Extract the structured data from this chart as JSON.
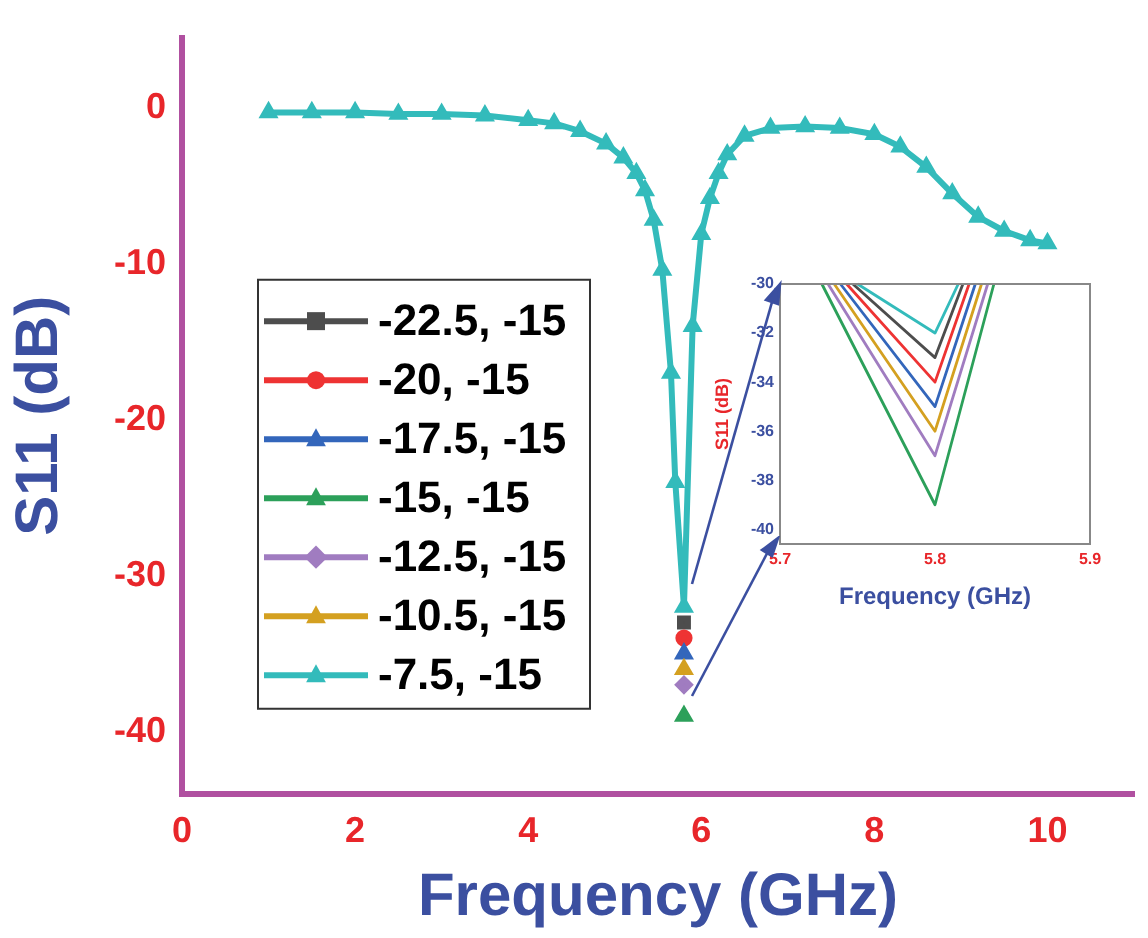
{
  "chart_data": [
    {
      "type": "line",
      "xlabel": "Frequency (GHz)",
      "ylabel": "S11 (dB)",
      "xlim": [
        0,
        11
      ],
      "ylim": [
        -44,
        4.5
      ],
      "xticks": [
        0,
        2,
        4,
        6,
        8,
        10
      ],
      "yticks": [
        -40,
        -30,
        -20,
        -10,
        0
      ],
      "legend": "left",
      "x": [
        1,
        1.5,
        2,
        2.5,
        3,
        3.5,
        4,
        4.3,
        4.6,
        4.9,
        5.1,
        5.25,
        5.35,
        5.45,
        5.55,
        5.65,
        5.7,
        5.8,
        5.9,
        6,
        6.1,
        6.2,
        6.3,
        6.5,
        6.8,
        7.2,
        7.6,
        8,
        8.3,
        8.6,
        8.9,
        9.2,
        9.5,
        9.8,
        10
      ],
      "series": [
        {
          "name": "-22.5, -15",
          "color": "#4d4d4d",
          "marker": "square",
          "values": [
            null,
            null,
            null,
            null,
            null,
            null,
            null,
            null,
            null,
            null,
            null,
            null,
            null,
            null,
            null,
            null,
            null,
            -33,
            null,
            null,
            null,
            null,
            null,
            null,
            null,
            null,
            null,
            null,
            null,
            null,
            null,
            null,
            null,
            null,
            null
          ]
        },
        {
          "name": "-20, -15",
          "color": "#ee3333",
          "marker": "circle",
          "values": [
            null,
            null,
            null,
            null,
            null,
            null,
            null,
            null,
            null,
            null,
            null,
            null,
            null,
            null,
            null,
            null,
            null,
            -34,
            null,
            null,
            null,
            null,
            null,
            null,
            null,
            null,
            null,
            null,
            null,
            null,
            null,
            null,
            null,
            null,
            null
          ]
        },
        {
          "name": "-17.5, -15",
          "color": "#3366bb",
          "marker": "triangle",
          "values": [
            null,
            null,
            null,
            null,
            null,
            null,
            null,
            null,
            null,
            null,
            null,
            null,
            null,
            null,
            null,
            null,
            null,
            -35,
            null,
            null,
            null,
            null,
            null,
            null,
            null,
            null,
            null,
            null,
            null,
            null,
            null,
            null,
            null,
            null,
            null
          ]
        },
        {
          "name": "-15, -15",
          "color": "#2ca05a",
          "marker": "triangle",
          "values": [
            null,
            null,
            null,
            null,
            null,
            null,
            null,
            null,
            null,
            null,
            null,
            null,
            null,
            null,
            null,
            null,
            null,
            -39,
            null,
            null,
            null,
            null,
            null,
            null,
            null,
            null,
            null,
            null,
            null,
            null,
            null,
            null,
            null,
            null,
            null
          ]
        },
        {
          "name": "-12.5, -15",
          "color": "#a07cc0",
          "marker": "diamond",
          "values": [
            null,
            null,
            null,
            null,
            null,
            null,
            null,
            null,
            null,
            null,
            null,
            null,
            null,
            null,
            null,
            null,
            null,
            -37,
            null,
            null,
            null,
            null,
            null,
            null,
            null,
            null,
            null,
            null,
            null,
            null,
            null,
            null,
            null,
            null,
            null
          ]
        },
        {
          "name": "-10.5, -15",
          "color": "#d4a020",
          "marker": "triangle",
          "values": [
            null,
            null,
            null,
            null,
            null,
            null,
            null,
            null,
            null,
            null,
            null,
            null,
            null,
            null,
            null,
            null,
            null,
            -36,
            null,
            null,
            null,
            null,
            null,
            null,
            null,
            null,
            null,
            null,
            null,
            null,
            null,
            null,
            null,
            null,
            null
          ]
        },
        {
          "name": "-7.5, -15",
          "color": "#33bbbb",
          "marker": "triangle",
          "values": [
            -0.3,
            -0.3,
            -0.3,
            -0.4,
            -0.4,
            -0.5,
            -0.8,
            -1,
            -1.5,
            -2.3,
            -3.2,
            -4.2,
            -5.3,
            -7.2,
            -10.4,
            -17,
            -24,
            -32,
            -14,
            -8.1,
            -5.8,
            -4.2,
            -3,
            -1.8,
            -1.3,
            -1.2,
            -1.3,
            -1.7,
            -2.5,
            -3.8,
            -5.5,
            -7,
            -7.9,
            -8.5,
            -8.7
          ]
        }
      ]
    },
    {
      "type": "line",
      "xlabel": "Frequency (GHz)",
      "ylabel": "S11 (dB)",
      "xlim": [
        5.7,
        5.9
      ],
      "ylim": [
        -40.6,
        -30
      ],
      "xticks": [
        5.7,
        5.8,
        5.9
      ],
      "yticks": [
        -40,
        -38,
        -36,
        -34,
        -32,
        -30
      ],
      "marker": "none",
      "series": [
        {
          "color": "#4d4d4d",
          "x": [
            5.747,
            5.8,
            5.818
          ],
          "values": [
            -30,
            -33,
            -30
          ]
        },
        {
          "color": "#ee3333",
          "x": [
            5.743,
            5.8,
            5.822
          ],
          "values": [
            -30,
            -34,
            -30
          ]
        },
        {
          "color": "#3366bb",
          "x": [
            5.739,
            5.8,
            5.826
          ],
          "values": [
            -30,
            -35,
            -30
          ]
        },
        {
          "color": "#2ca05a",
          "x": [
            5.727,
            5.8,
            5.838
          ],
          "values": [
            -30,
            -39,
            -30
          ]
        },
        {
          "color": "#a07cc0",
          "x": [
            5.731,
            5.8,
            5.834
          ],
          "values": [
            -30,
            -37,
            -30
          ]
        },
        {
          "color": "#d4a020",
          "x": [
            5.735,
            5.8,
            5.83
          ],
          "values": [
            -30,
            -36,
            -30
          ]
        },
        {
          "color": "#33bbbb",
          "x": [
            5.75,
            5.8,
            5.815
          ],
          "values": [
            -30,
            -32,
            -30
          ]
        }
      ]
    }
  ]
}
